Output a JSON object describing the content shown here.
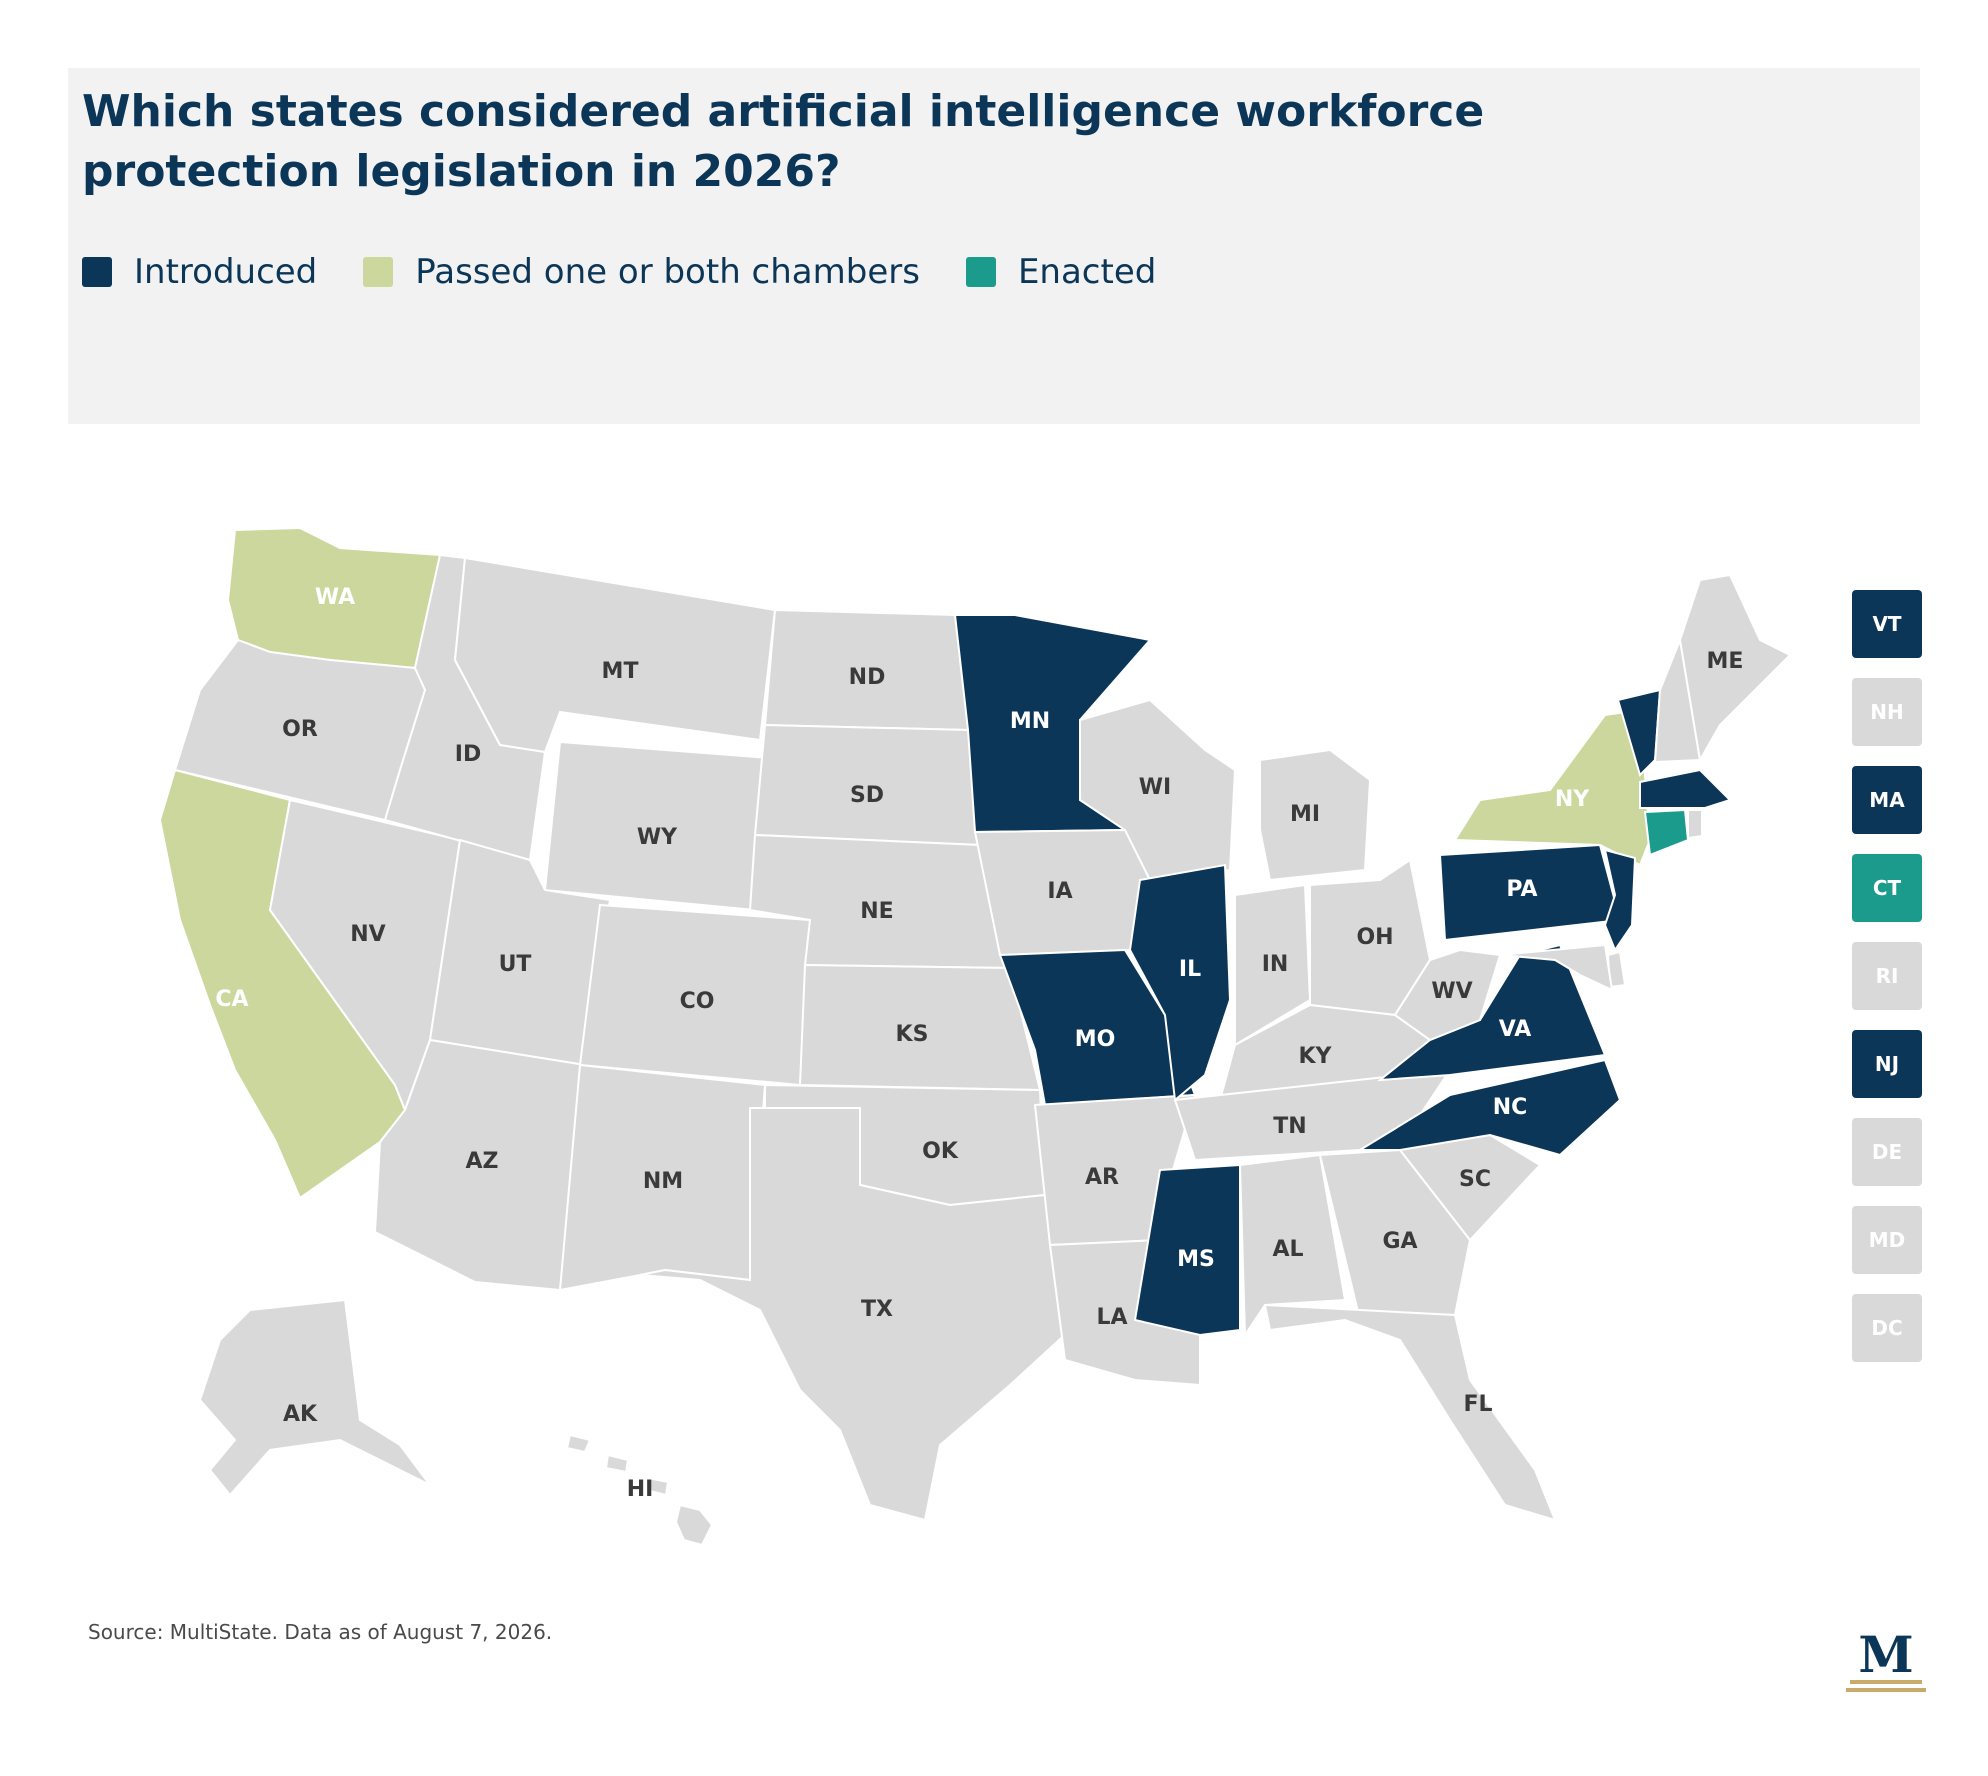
{
  "title": "Which states considered artificial intelligence workforce protection legislation in 2026?",
  "colors": {
    "introduced": "#0c3657",
    "passed": "#ccd79d",
    "enacted": "#1a9b8c",
    "none": "#d9d9d9",
    "label_light": "#ffffff",
    "label_dark": "#3a3a3a",
    "logo_gold": "#c9aa6a"
  },
  "legend": [
    {
      "key": "introduced",
      "label": "Introduced"
    },
    {
      "key": "passed",
      "label": "Passed one or both chambers"
    },
    {
      "key": "enacted",
      "label": "Enacted"
    }
  ],
  "states": [
    {
      "abbr": "WA",
      "status": "passed"
    },
    {
      "abbr": "OR",
      "status": "none"
    },
    {
      "abbr": "CA",
      "status": "passed"
    },
    {
      "abbr": "NV",
      "status": "none"
    },
    {
      "abbr": "ID",
      "status": "none"
    },
    {
      "abbr": "MT",
      "status": "none"
    },
    {
      "abbr": "WY",
      "status": "none"
    },
    {
      "abbr": "UT",
      "status": "none"
    },
    {
      "abbr": "AZ",
      "status": "none"
    },
    {
      "abbr": "CO",
      "status": "none"
    },
    {
      "abbr": "NM",
      "status": "none"
    },
    {
      "abbr": "ND",
      "status": "none"
    },
    {
      "abbr": "SD",
      "status": "none"
    },
    {
      "abbr": "NE",
      "status": "none"
    },
    {
      "abbr": "KS",
      "status": "none"
    },
    {
      "abbr": "OK",
      "status": "none"
    },
    {
      "abbr": "TX",
      "status": "none"
    },
    {
      "abbr": "MN",
      "status": "introduced"
    },
    {
      "abbr": "IA",
      "status": "none"
    },
    {
      "abbr": "MO",
      "status": "introduced"
    },
    {
      "abbr": "AR",
      "status": "none"
    },
    {
      "abbr": "LA",
      "status": "none"
    },
    {
      "abbr": "WI",
      "status": "none"
    },
    {
      "abbr": "IL",
      "status": "introduced"
    },
    {
      "abbr": "MI",
      "status": "none"
    },
    {
      "abbr": "IN",
      "status": "none"
    },
    {
      "abbr": "OH",
      "status": "none"
    },
    {
      "abbr": "KY",
      "status": "none"
    },
    {
      "abbr": "TN",
      "status": "none"
    },
    {
      "abbr": "MS",
      "status": "introduced"
    },
    {
      "abbr": "AL",
      "status": "none"
    },
    {
      "abbr": "GA",
      "status": "none"
    },
    {
      "abbr": "FL",
      "status": "none"
    },
    {
      "abbr": "SC",
      "status": "none"
    },
    {
      "abbr": "NC",
      "status": "introduced"
    },
    {
      "abbr": "VA",
      "status": "introduced"
    },
    {
      "abbr": "WV",
      "status": "none"
    },
    {
      "abbr": "PA",
      "status": "introduced"
    },
    {
      "abbr": "NY",
      "status": "passed"
    },
    {
      "abbr": "VT",
      "status": "introduced"
    },
    {
      "abbr": "NH",
      "status": "none"
    },
    {
      "abbr": "ME",
      "status": "none"
    },
    {
      "abbr": "MA",
      "status": "introduced"
    },
    {
      "abbr": "CT",
      "status": "enacted"
    },
    {
      "abbr": "RI",
      "status": "none"
    },
    {
      "abbr": "NJ",
      "status": "introduced"
    },
    {
      "abbr": "DE",
      "status": "none"
    },
    {
      "abbr": "MD",
      "status": "none"
    },
    {
      "abbr": "AK",
      "status": "none"
    },
    {
      "abbr": "HI",
      "status": "none"
    }
  ],
  "northeast_boxes": [
    {
      "abbr": "VT",
      "status": "introduced"
    },
    {
      "abbr": "NH",
      "status": "none"
    },
    {
      "abbr": "MA",
      "status": "introduced"
    },
    {
      "abbr": "CT",
      "status": "enacted"
    },
    {
      "abbr": "RI",
      "status": "none"
    },
    {
      "abbr": "NJ",
      "status": "introduced"
    },
    {
      "abbr": "DE",
      "status": "none"
    },
    {
      "abbr": "MD",
      "status": "none"
    },
    {
      "abbr": "DC",
      "status": "none"
    }
  ],
  "source": "Source: MultiState. Data as of August 7, 2026.",
  "logo": {
    "letter": "M"
  }
}
